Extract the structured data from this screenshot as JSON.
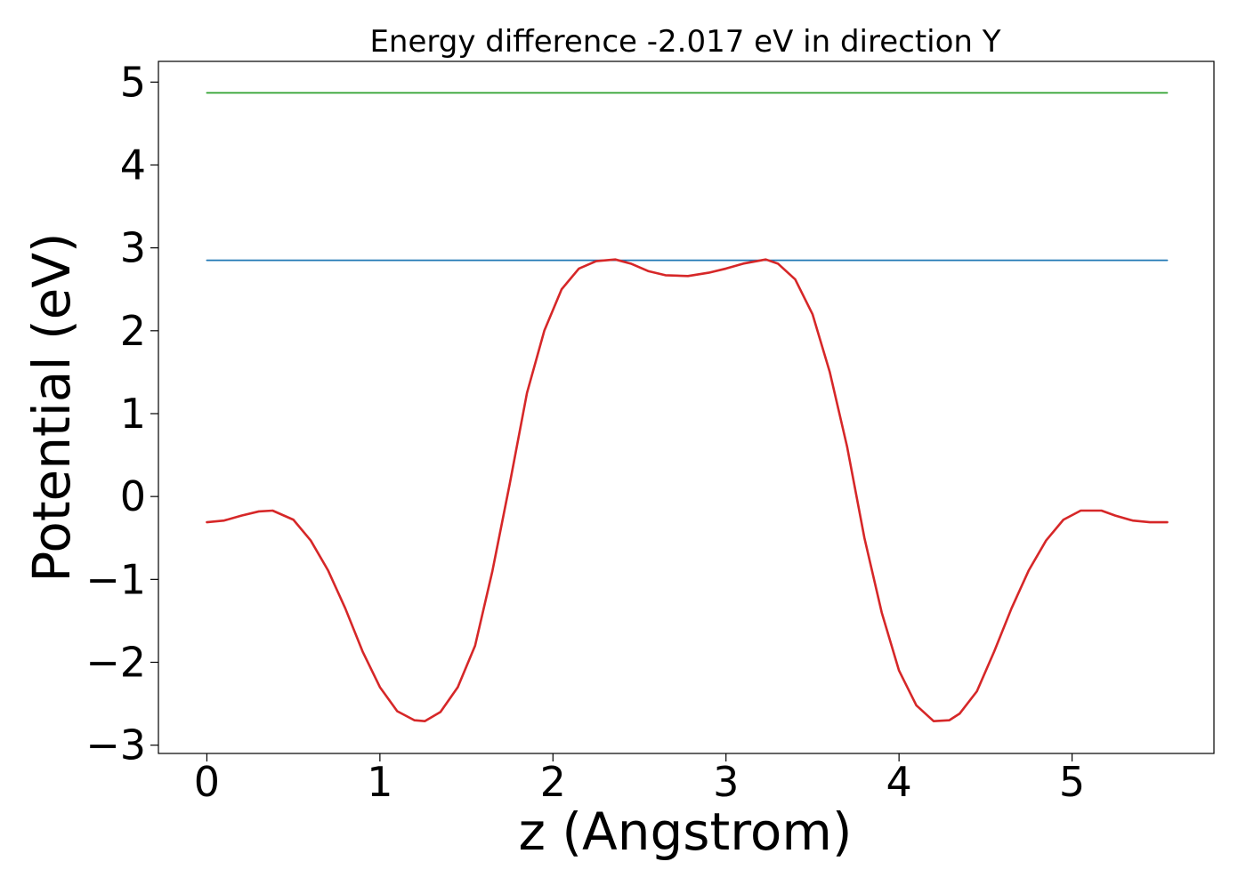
{
  "chart_data": {
    "type": "line",
    "title": "Energy difference -2.017 eV in direction Y",
    "xlabel": "z (Angstrom)",
    "ylabel": "Potential (eV)",
    "xlim": [
      -0.28,
      5.82
    ],
    "ylim": [
      -3.1,
      5.25
    ],
    "xticks": [
      0,
      1,
      2,
      3,
      4,
      5
    ],
    "yticks": [
      -3,
      -2,
      -1,
      0,
      1,
      2,
      3,
      4,
      5
    ],
    "xtick_labels": [
      "0",
      "1",
      "2",
      "3",
      "4",
      "5"
    ],
    "ytick_labels": [
      "−3",
      "−2",
      "−1",
      "0",
      "1",
      "2",
      "3",
      "4",
      "5"
    ],
    "grid": false,
    "legend": "none",
    "series": [
      {
        "color": "#2ca02c",
        "x": [
          0,
          5.55
        ],
        "y": [
          4.87,
          4.87
        ]
      },
      {
        "color": "#1f77b4",
        "x": [
          0,
          5.55
        ],
        "y": [
          2.85,
          2.85
        ]
      },
      {
        "color": "#d62728",
        "x": [
          0,
          0.1,
          0.2,
          0.3,
          0.38,
          0.5,
          0.6,
          0.7,
          0.8,
          0.9,
          1.0,
          1.1,
          1.2,
          1.26,
          1.35,
          1.45,
          1.55,
          1.65,
          1.75,
          1.85,
          1.95,
          2.05,
          2.15,
          2.25,
          2.36,
          2.45,
          2.55,
          2.65,
          2.78,
          2.9,
          3.0,
          3.1,
          3.23,
          3.3,
          3.4,
          3.5,
          3.6,
          3.7,
          3.8,
          3.9,
          4.0,
          4.1,
          4.2,
          4.29,
          4.35,
          4.45,
          4.55,
          4.65,
          4.75,
          4.85,
          4.95,
          5.05,
          5.17,
          5.25,
          5.35,
          5.45,
          5.55
        ],
        "y": [
          -0.31,
          -0.29,
          -0.23,
          -0.18,
          -0.17,
          -0.28,
          -0.53,
          -0.89,
          -1.35,
          -1.87,
          -2.3,
          -2.59,
          -2.7,
          -2.71,
          -2.6,
          -2.3,
          -1.8,
          -0.9,
          0.15,
          1.25,
          2.0,
          2.5,
          2.75,
          2.84,
          2.86,
          2.81,
          2.72,
          2.67,
          2.66,
          2.7,
          2.75,
          2.81,
          2.86,
          2.81,
          2.62,
          2.2,
          1.5,
          0.6,
          -0.5,
          -1.4,
          -2.1,
          -2.52,
          -2.71,
          -2.7,
          -2.62,
          -2.35,
          -1.87,
          -1.35,
          -0.89,
          -0.53,
          -0.28,
          -0.17,
          -0.17,
          -0.23,
          -0.29,
          -0.31,
          -0.31
        ]
      }
    ]
  }
}
